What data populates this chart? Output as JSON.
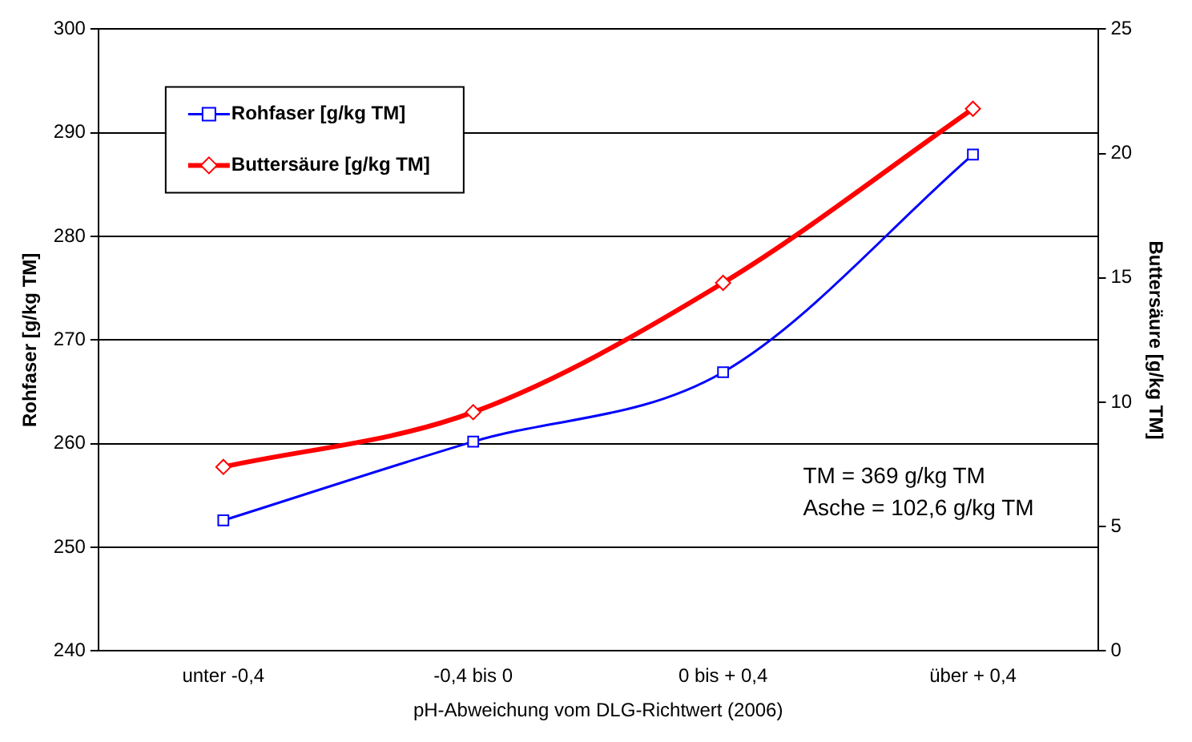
{
  "chart_data": {
    "type": "line",
    "xlabel": "pH-Abweichung vom DLG-Richtwert (2006)",
    "ylabel": "Rohfaser [g/kg TM]",
    "y2label": "Buttersäure [g/kg TM]",
    "categories": [
      "unter -0,4",
      "-0,4 bis 0",
      "0 bis + 0,4",
      "über + 0,4"
    ],
    "series": [
      {
        "name": "Rohfaser [g/kg TM]",
        "color": "#0000ff",
        "values": [
          252.6,
          260.2,
          266.9,
          287.9
        ],
        "marker": "square"
      },
      {
        "name": "Buttersäure [g/kg TM]",
        "color": "#ff0000",
        "values": [
          7.4,
          9.6,
          14.8,
          21.8
        ],
        "axis": "y2",
        "marker": "diamond"
      }
    ],
    "ylim": [
      240,
      300
    ],
    "yticks": [
      240,
      250,
      260,
      270,
      280,
      290,
      300
    ],
    "y2lim": [
      0,
      25
    ],
    "y2ticks": [
      0,
      5,
      10,
      15,
      20,
      25
    ],
    "grid": "y",
    "legend": "top left",
    "annotations": [
      "TM = 369 g/kg TM",
      "Asche = 102,6 g/kg TM"
    ]
  }
}
